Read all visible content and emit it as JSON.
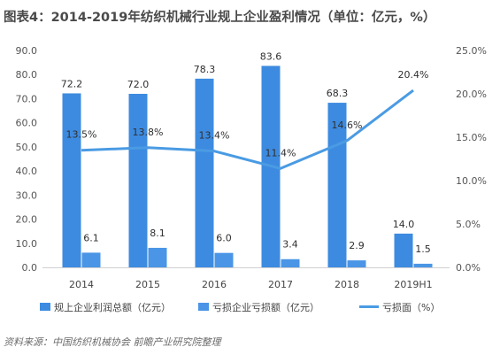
{
  "title": "图表4：2014-2019年纺织机械行业规上企业盈利情况（单位：亿元，%）",
  "source": "资料来源：中国纺织机械协会 前瞻产业研究院整理",
  "colors": {
    "profit": "#3d8be0",
    "loss": "#4a95e6",
    "rate": "#4a9be3"
  },
  "chart_data": {
    "type": "bar",
    "categories": [
      "2014",
      "2015",
      "2016",
      "2017",
      "2018",
      "2019H1"
    ],
    "series": [
      {
        "name": "规上企业利润总额（亿元）",
        "type": "bar",
        "axis": "left",
        "values": [
          72.2,
          72.0,
          78.3,
          83.6,
          68.3,
          14.0
        ],
        "labels": [
          "72.2",
          "72.0",
          "78.3",
          "83.6",
          "68.3",
          "14.0"
        ]
      },
      {
        "name": "亏损企业亏损额（亿元）",
        "type": "bar",
        "axis": "left",
        "values": [
          6.1,
          8.1,
          6.0,
          3.4,
          2.9,
          1.5
        ],
        "labels": [
          "6.1",
          "8.1",
          "6.0",
          "3.4",
          "2.9",
          "1.5"
        ]
      },
      {
        "name": "亏损面（%）",
        "type": "line",
        "axis": "right",
        "values": [
          13.5,
          13.8,
          13.4,
          11.4,
          14.6,
          20.4
        ],
        "labels": [
          "13.5%",
          "13.8%",
          "13.4%",
          "11.4%",
          "14.6%",
          "20.4%"
        ]
      }
    ],
    "y_left": {
      "min": 0,
      "max": 90,
      "step": 10,
      "ticks": [
        "0.0",
        "10.0",
        "20.0",
        "30.0",
        "40.0",
        "50.0",
        "60.0",
        "70.0",
        "80.0",
        "90.0"
      ]
    },
    "y_right": {
      "min": 0,
      "max": 25,
      "step": 5,
      "ticks": [
        "0.0%",
        "5.0%",
        "10.0%",
        "15.0%",
        "20.0%",
        "25.0%"
      ]
    },
    "grid": false,
    "legend_position": "bottom"
  }
}
